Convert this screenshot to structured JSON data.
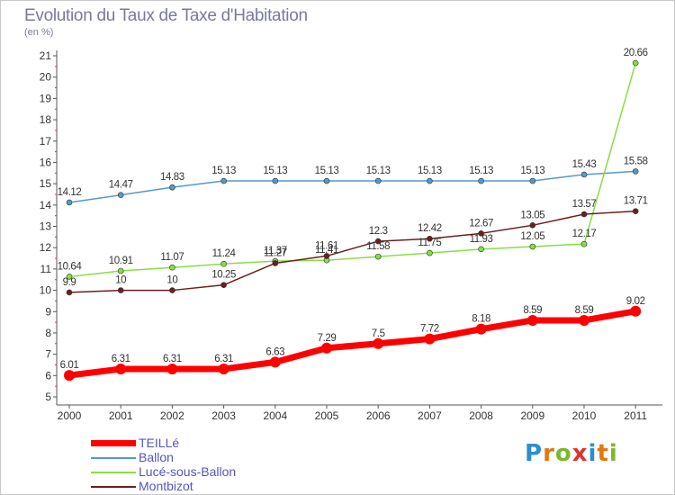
{
  "title": "Evolution du Taux de Taxe d'Habitation",
  "subtitle": "(en %)",
  "logo": {
    "letters": [
      "P",
      "r",
      "o",
      "x",
      "i",
      "t",
      "i"
    ],
    "colors": [
      "#2a8fd0",
      "#e07a10",
      "#7ab830",
      "#e03030",
      "#2a8fd0",
      "#e07a10",
      "#7ab830"
    ]
  },
  "chart_data": {
    "type": "line",
    "x": [
      "2000",
      "2001",
      "2002",
      "2003",
      "2004",
      "2005",
      "2006",
      "2007",
      "2008",
      "2009",
      "2010",
      "2011"
    ],
    "ylim": [
      5,
      21
    ],
    "yticks": [
      "5",
      "6",
      "7",
      "8",
      "9",
      "10",
      "11",
      "12",
      "13",
      "14",
      "15",
      "16",
      "17",
      "18",
      "19",
      "20",
      "21"
    ],
    "grid": false,
    "legend_position": "bottom-left",
    "series": [
      {
        "name": "TEILLé",
        "color": "#ff0000",
        "width": 7,
        "marker": 6,
        "values": [
          6.01,
          6.31,
          6.31,
          6.31,
          6.63,
          7.29,
          7.5,
          7.72,
          8.18,
          8.59,
          8.59,
          9.02
        ],
        "labels": [
          "6.01",
          "6.31",
          "6.31",
          "6.31",
          "6.63",
          "7.29",
          "7.5",
          "7.72",
          "8.18",
          "8.59",
          "8.59",
          "9.02"
        ]
      },
      {
        "name": "Ballon",
        "color": "#5599cc",
        "width": 1.5,
        "marker": 3,
        "values": [
          14.12,
          14.47,
          14.83,
          15.13,
          15.13,
          15.13,
          15.13,
          15.13,
          15.13,
          15.13,
          15.43,
          15.58
        ],
        "labels": [
          "14.12",
          "14.47",
          "14.83",
          "15.13",
          "15.13",
          "15.13",
          "15.13",
          "15.13",
          "15.13",
          "15.13",
          "15.43",
          "15.58"
        ]
      },
      {
        "name": "Lucé-sous-Ballon",
        "color": "#88dd44",
        "width": 1.5,
        "marker": 3,
        "values": [
          10.64,
          10.91,
          11.07,
          11.24,
          11.37,
          11.41,
          11.58,
          11.75,
          11.93,
          12.05,
          12.17,
          20.66
        ],
        "labels": [
          "10.64",
          "10.91",
          "11.07",
          "11.24",
          "11.37",
          "11.41",
          "11.58",
          "11.75",
          "11.93",
          "12.05",
          "12.17",
          "20.66"
        ]
      },
      {
        "name": "Montbizot",
        "color": "#6b1f1f",
        "width": 1.5,
        "marker": 3,
        "values": [
          9.9,
          10,
          10,
          10.25,
          11.27,
          11.61,
          12.3,
          12.42,
          12.67,
          13.05,
          13.57,
          13.71
        ],
        "labels": [
          "9.9",
          "10",
          "10",
          "10.25",
          "11.27",
          "11.61",
          "12.3",
          "12.42",
          "12.67",
          "13.05",
          "13.57",
          "13.71"
        ]
      }
    ]
  }
}
